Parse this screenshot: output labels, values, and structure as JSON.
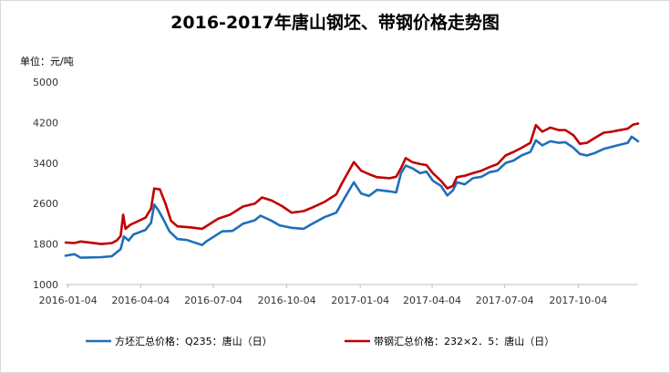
{
  "chart_data": {
    "type": "line",
    "title": "2016-2017年唐山钢坯、带钢价格走势图",
    "ylabel": "单位：元/吨",
    "ylim": [
      1000,
      5000
    ],
    "yticks": [
      1000,
      1800,
      2600,
      3400,
      4200,
      5000
    ],
    "xlim": [
      "2016-01-01",
      "2017-12-18"
    ],
    "xticks": [
      "2016-01-04",
      "2016-04-04",
      "2016-07-04",
      "2016-10-04",
      "2017-01-04",
      "2017-04-04",
      "2017-07-04",
      "2017-10-04"
    ],
    "grid": false,
    "legend": "bottom",
    "series": [
      {
        "name": "方坯汇总价格：Q235：唐山（日）",
        "color": "#1f6fba",
        "points": [
          [
            "2016-01-01",
            1570
          ],
          [
            "2016-01-12",
            1600
          ],
          [
            "2016-01-20",
            1530
          ],
          [
            "2016-02-15",
            1540
          ],
          [
            "2016-02-28",
            1560
          ],
          [
            "2016-03-10",
            1700
          ],
          [
            "2016-03-14",
            1950
          ],
          [
            "2016-03-20",
            1870
          ],
          [
            "2016-03-26",
            1990
          ],
          [
            "2016-04-10",
            2080
          ],
          [
            "2016-04-17",
            2220
          ],
          [
            "2016-04-21",
            2580
          ],
          [
            "2016-04-26",
            2470
          ],
          [
            "2016-05-02",
            2300
          ],
          [
            "2016-05-10",
            2050
          ],
          [
            "2016-05-20",
            1900
          ],
          [
            "2016-06-01",
            1880
          ],
          [
            "2016-06-20",
            1780
          ],
          [
            "2016-06-25",
            1850
          ],
          [
            "2016-07-05",
            1950
          ],
          [
            "2016-07-15",
            2050
          ],
          [
            "2016-07-28",
            2060
          ],
          [
            "2016-08-10",
            2200
          ],
          [
            "2016-08-25",
            2270
          ],
          [
            "2016-09-01",
            2360
          ],
          [
            "2016-09-15",
            2260
          ],
          [
            "2016-09-25",
            2170
          ],
          [
            "2016-10-10",
            2120
          ],
          [
            "2016-10-25",
            2100
          ],
          [
            "2016-11-05",
            2200
          ],
          [
            "2016-11-20",
            2330
          ],
          [
            "2016-12-05",
            2420
          ],
          [
            "2016-12-15",
            2700
          ],
          [
            "2016-12-27",
            3020
          ],
          [
            "2017-01-05",
            2800
          ],
          [
            "2017-01-15",
            2750
          ],
          [
            "2017-01-25",
            2870
          ],
          [
            "2017-02-10",
            2840
          ],
          [
            "2017-02-18",
            2820
          ],
          [
            "2017-02-24",
            3200
          ],
          [
            "2017-03-02",
            3350
          ],
          [
            "2017-03-10",
            3300
          ],
          [
            "2017-03-20",
            3200
          ],
          [
            "2017-03-28",
            3230
          ],
          [
            "2017-04-05",
            3050
          ],
          [
            "2017-04-15",
            2950
          ],
          [
            "2017-04-23",
            2760
          ],
          [
            "2017-04-30",
            2860
          ],
          [
            "2017-05-05",
            3020
          ],
          [
            "2017-05-15",
            2980
          ],
          [
            "2017-05-25",
            3100
          ],
          [
            "2017-06-05",
            3130
          ],
          [
            "2017-06-15",
            3220
          ],
          [
            "2017-06-25",
            3250
          ],
          [
            "2017-07-05",
            3400
          ],
          [
            "2017-07-15",
            3450
          ],
          [
            "2017-07-25",
            3550
          ],
          [
            "2017-08-05",
            3620
          ],
          [
            "2017-08-12",
            3850
          ],
          [
            "2017-08-20",
            3750
          ],
          [
            "2017-08-30",
            3830
          ],
          [
            "2017-09-10",
            3800
          ],
          [
            "2017-09-18",
            3810
          ],
          [
            "2017-09-28",
            3700
          ],
          [
            "2017-10-06",
            3580
          ],
          [
            "2017-10-15",
            3550
          ],
          [
            "2017-10-25",
            3600
          ],
          [
            "2017-11-05",
            3680
          ],
          [
            "2017-11-15",
            3720
          ],
          [
            "2017-11-25",
            3760
          ],
          [
            "2017-12-05",
            3800
          ],
          [
            "2017-12-10",
            3920
          ],
          [
            "2017-12-18",
            3830
          ]
        ]
      },
      {
        "name": "带钢汇总价格：232×2．5：唐山（日）",
        "color": "#c00000",
        "points": [
          [
            "2016-01-01",
            1830
          ],
          [
            "2016-01-12",
            1820
          ],
          [
            "2016-01-20",
            1850
          ],
          [
            "2016-02-15",
            1800
          ],
          [
            "2016-02-28",
            1820
          ],
          [
            "2016-03-05",
            1870
          ],
          [
            "2016-03-10",
            1960
          ],
          [
            "2016-03-13",
            2380
          ],
          [
            "2016-03-16",
            2100
          ],
          [
            "2016-03-22",
            2180
          ],
          [
            "2016-04-10",
            2320
          ],
          [
            "2016-04-17",
            2500
          ],
          [
            "2016-04-21",
            2900
          ],
          [
            "2016-04-28",
            2880
          ],
          [
            "2016-05-05",
            2600
          ],
          [
            "2016-05-12",
            2260
          ],
          [
            "2016-05-20",
            2150
          ],
          [
            "2016-06-05",
            2130
          ],
          [
            "2016-06-20",
            2100
          ],
          [
            "2016-06-30",
            2200
          ],
          [
            "2016-07-10",
            2300
          ],
          [
            "2016-07-25",
            2380
          ],
          [
            "2016-08-10",
            2540
          ],
          [
            "2016-08-25",
            2600
          ],
          [
            "2016-09-03",
            2720
          ],
          [
            "2016-09-15",
            2660
          ],
          [
            "2016-09-28",
            2550
          ],
          [
            "2016-10-10",
            2420
          ],
          [
            "2016-10-25",
            2450
          ],
          [
            "2016-11-05",
            2520
          ],
          [
            "2016-11-20",
            2630
          ],
          [
            "2016-12-05",
            2780
          ],
          [
            "2016-12-12",
            3000
          ],
          [
            "2016-12-27",
            3420
          ],
          [
            "2017-01-05",
            3250
          ],
          [
            "2017-01-15",
            3180
          ],
          [
            "2017-01-25",
            3120
          ],
          [
            "2017-02-10",
            3100
          ],
          [
            "2017-02-18",
            3130
          ],
          [
            "2017-02-24",
            3300
          ],
          [
            "2017-03-02",
            3500
          ],
          [
            "2017-03-10",
            3420
          ],
          [
            "2017-03-20",
            3380
          ],
          [
            "2017-03-28",
            3360
          ],
          [
            "2017-04-05",
            3200
          ],
          [
            "2017-04-15",
            3050
          ],
          [
            "2017-04-23",
            2900
          ],
          [
            "2017-04-30",
            2950
          ],
          [
            "2017-05-05",
            3120
          ],
          [
            "2017-05-15",
            3150
          ],
          [
            "2017-05-25",
            3200
          ],
          [
            "2017-06-05",
            3250
          ],
          [
            "2017-06-15",
            3320
          ],
          [
            "2017-06-25",
            3380
          ],
          [
            "2017-07-05",
            3550
          ],
          [
            "2017-07-15",
            3620
          ],
          [
            "2017-07-25",
            3700
          ],
          [
            "2017-08-05",
            3800
          ],
          [
            "2017-08-12",
            4150
          ],
          [
            "2017-08-20",
            4020
          ],
          [
            "2017-08-30",
            4100
          ],
          [
            "2017-09-10",
            4050
          ],
          [
            "2017-09-18",
            4050
          ],
          [
            "2017-09-28",
            3950
          ],
          [
            "2017-10-06",
            3780
          ],
          [
            "2017-10-15",
            3800
          ],
          [
            "2017-10-25",
            3900
          ],
          [
            "2017-11-05",
            4000
          ],
          [
            "2017-11-15",
            4020
          ],
          [
            "2017-11-25",
            4050
          ],
          [
            "2017-12-05",
            4080
          ],
          [
            "2017-12-12",
            4160
          ],
          [
            "2017-12-18",
            4180
          ]
        ]
      }
    ]
  }
}
